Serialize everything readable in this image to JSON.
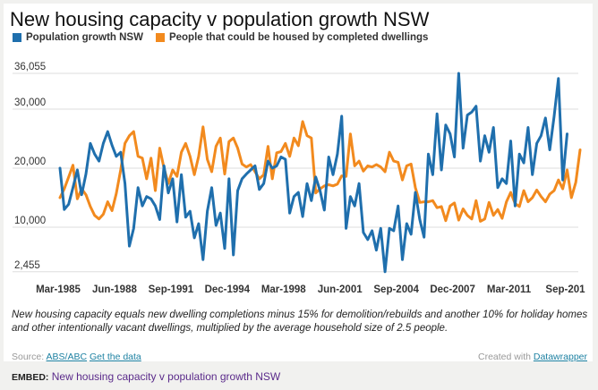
{
  "header": {
    "title": "New housing capacity v population growth NSW"
  },
  "legend": [
    {
      "label": "Population growth NSW",
      "color": "#1f6fad"
    },
    {
      "label": "People that could be housed by completed dwellings",
      "color": "#f28a1e"
    }
  ],
  "note": "New housing capacity equals new dwelling completions minus 15% for demolition/rebuilds and another 10% for holiday homes and other intentionally vacant dwellings, multiplied by the average household size of 2.5 people.",
  "footer": {
    "source_prefix": "Source:",
    "source_link": "ABS/ABC",
    "data_link": "Get the data",
    "credit_prefix": "Created with",
    "credit_link": "Datawrapper",
    "embed_label": "EMBED:",
    "embed_title": "New housing capacity v population growth NSW"
  },
  "chart_data": {
    "type": "line",
    "title": "New housing capacity v population growth NSW",
    "xlabel": "",
    "ylabel": "",
    "ylim": [
      2455,
      36055
    ],
    "y_ticks": [
      {
        "value": 36055,
        "label": "36,055"
      },
      {
        "value": 30000,
        "label": "30,000"
      },
      {
        "value": 20000,
        "label": "20,000"
      },
      {
        "value": 10000,
        "label": "10,000"
      },
      {
        "value": 2455,
        "label": "2,455"
      }
    ],
    "x_tick_labels": [
      "Mar-1985",
      "Jun-1988",
      "Sep-1991",
      "Dec-1994",
      "Mar-1998",
      "Jun-2001",
      "Sep-2004",
      "Dec-2007",
      "Mar-2011",
      "Sep-201"
    ],
    "x_tick_quarter_index": [
      0,
      13,
      26,
      39,
      52,
      65,
      78,
      91,
      104,
      117
    ],
    "x_start": "Mar-1985",
    "grid": true,
    "legend_position": "top-left",
    "series": [
      {
        "name": "Population growth NSW",
        "color": "#1f6fad",
        "values": [
          20000,
          13000,
          13900,
          16700,
          19700,
          15500,
          19000,
          24200,
          22400,
          21200,
          24200,
          26200,
          23900,
          22000,
          22700,
          17400,
          6800,
          9800,
          16700,
          13600,
          15200,
          14800,
          13600,
          11300,
          20400,
          15800,
          18200,
          10900,
          18900,
          11700,
          12700,
          8200,
          10600,
          4500,
          12700,
          16700,
          10300,
          12400,
          6400,
          18200,
          5300,
          16200,
          18200,
          19000,
          19700,
          20400,
          16400,
          17400,
          21200,
          20000,
          20400,
          21900,
          21500,
          12400,
          15200,
          15900,
          11800,
          17400,
          14500,
          18500,
          16200,
          12900,
          21900,
          18900,
          22400,
          28800,
          9800,
          15200,
          13600,
          17400,
          9100,
          7900,
          9400,
          6100,
          9800,
          2455,
          9800,
          9400,
          13600,
          4500,
          10600,
          8800,
          15900,
          11300,
          8300,
          22400,
          18900,
          29200,
          19700,
          27300,
          25800,
          21900,
          36055,
          23400,
          29000,
          29500,
          30500,
          21200,
          25500,
          22700,
          26900,
          16700,
          18200,
          17400,
          24600,
          13600,
          22400,
          20900,
          26900,
          18900,
          24200,
          25500,
          28500,
          23100,
          28800,
          35200,
          18000,
          25800
        ]
      },
      {
        "name": "People that could be housed by completed dwellings",
        "color": "#f28a1e",
        "values": [
          15000,
          16500,
          18500,
          20500,
          14800,
          16500,
          15500,
          13500,
          12000,
          11400,
          12200,
          14300,
          12800,
          15700,
          19700,
          24200,
          25500,
          26200,
          22000,
          21700,
          18200,
          21700,
          16200,
          23400,
          20000,
          17400,
          19700,
          18600,
          22700,
          24200,
          22000,
          18900,
          22000,
          27000,
          21500,
          19400,
          23700,
          25100,
          19000,
          24500,
          25100,
          23400,
          20700,
          20200,
          20600,
          19400,
          18200,
          18900,
          23700,
          18200,
          22600,
          22800,
          24200,
          22000,
          25100,
          23800,
          27900,
          25500,
          25100,
          15800,
          16500,
          17000,
          17200,
          17000,
          17300,
          18700,
          18600,
          25800,
          20400,
          21200,
          19500,
          20400,
          20200,
          20600,
          20200,
          19400,
          22700,
          21200,
          21000,
          18000,
          20400,
          20700,
          16700,
          14200,
          14300,
          14300,
          14500,
          13300,
          13500,
          11100,
          13600,
          14100,
          11200,
          13100,
          12000,
          11400,
          14500,
          11000,
          11400,
          14200,
          12000,
          13000,
          11500,
          14300,
          15900,
          14000,
          13500,
          16200,
          14300,
          15000,
          16300,
          15200,
          14300,
          15600,
          16200,
          18000,
          16500,
          19700,
          15000,
          17600,
          23100
        ]
      }
    ]
  }
}
